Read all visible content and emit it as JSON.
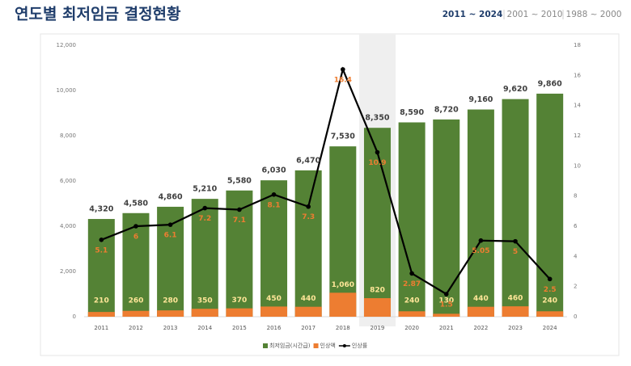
{
  "tabs": [
    "2011 ~ 2024",
    "2001 ~ 2010",
    "1988 ~ 2000"
  ],
  "chart_data": {
    "type": "bar",
    "title": "연도별 최저임금 결정현황",
    "categories": [
      "2011",
      "2012",
      "2013",
      "2014",
      "2015",
      "2016",
      "2017",
      "2018",
      "2019",
      "2020",
      "2021",
      "2022",
      "2023",
      "2024"
    ],
    "series": [
      {
        "name": "최저임금(시간급)",
        "type": "bar",
        "color": "#548235",
        "values": [
          4320,
          4580,
          4860,
          5210,
          5580,
          6030,
          6470,
          7530,
          8350,
          8590,
          8720,
          9160,
          9620,
          9860
        ],
        "value_labels": [
          "4,320",
          "4,580",
          "4,860",
          "5,210",
          "5,580",
          "6,030",
          "6,470",
          "7,530",
          "8,350",
          "8,590",
          "8,720",
          "9,160",
          "9,620",
          "9,860"
        ]
      },
      {
        "name": "인상액",
        "type": "bar",
        "color": "#ed7d31",
        "values": [
          210,
          260,
          280,
          350,
          370,
          450,
          440,
          1060,
          820,
          240,
          130,
          440,
          460,
          240
        ],
        "value_labels": [
          "210",
          "260",
          "280",
          "350",
          "370",
          "450",
          "440",
          "1,060",
          "820",
          "240",
          "130",
          "440",
          "460",
          "240"
        ]
      },
      {
        "name": "인상률",
        "type": "line",
        "axis": "y2",
        "color": "#000000",
        "values": [
          5.1,
          6,
          6.1,
          7.2,
          7.1,
          8.1,
          7.3,
          16.4,
          10.9,
          2.87,
          1.5,
          5.05,
          5,
          2.5
        ]
      }
    ],
    "ylim": [
      0,
      12000
    ],
    "yticks": [
      0,
      {
        "value": 2000,
        "label": "2,000"
      },
      {
        "value": 4000,
        "label": "4,000"
      },
      {
        "value": 6000,
        "label": "6,000"
      },
      {
        "value": 8000,
        "label": "8,000"
      },
      {
        "value": 10000,
        "label": "10,000"
      },
      {
        "value": 12000,
        "label": "12,000"
      }
    ],
    "y2lim": [
      0,
      18
    ],
    "y2ticks": [
      0,
      2,
      4,
      6,
      8,
      10,
      12,
      14,
      16,
      18
    ],
    "legend": "bottom"
  }
}
